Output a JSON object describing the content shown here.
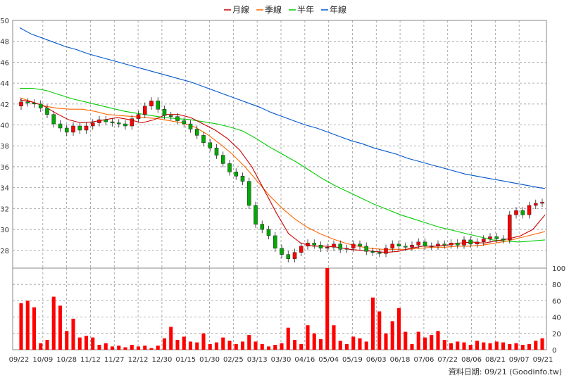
{
  "chart_data": {
    "type": "candlestick",
    "legend": [
      "月線",
      "季線",
      "半年",
      "年線"
    ],
    "colors": {
      "月線": "#cc0000",
      "季線": "#ff6600",
      "半年": "#00cc00",
      "年線": "#0055cc",
      "up": "#ff0000",
      "down": "#00aa00",
      "volume": "#ff0000",
      "grid": "#999999"
    },
    "price_axis": {
      "ticks": [
        28,
        30,
        32,
        34,
        36,
        38,
        40,
        42,
        44,
        46,
        48,
        50
      ],
      "range": [
        26.3,
        50
      ]
    },
    "volume_axis": {
      "ticks": [
        0,
        20,
        40,
        60,
        80,
        100
      ],
      "range": [
        0,
        100
      ]
    },
    "x_tick_labels": [
      "09/22",
      "10/09",
      "10/28",
      "11/12",
      "11/27",
      "12/12",
      "12/30",
      "01/15",
      "01/30",
      "02/25",
      "03/13",
      "03/30",
      "04/16",
      "05/04",
      "05/19",
      "06/03",
      "06/18",
      "07/06",
      "07/22",
      "08/06",
      "08/21",
      "09/07",
      "09/21"
    ],
    "series": [
      {
        "name": "年線",
        "values": [
          49.3,
          48.7,
          48.3,
          47.9,
          47.5,
          47.2,
          46.8,
          46.5,
          46.2,
          45.9,
          45.6,
          45.3,
          45.0,
          44.7,
          44.4,
          44.1,
          43.7,
          43.3,
          42.9,
          42.5,
          42.1,
          41.7,
          41.2,
          40.8,
          40.4,
          40.0,
          39.7,
          39.3,
          38.9,
          38.5,
          38.2,
          37.8,
          37.5,
          37.2,
          36.8,
          36.5,
          36.2,
          35.9,
          35.6,
          35.3,
          35.1,
          34.9,
          34.7,
          34.5,
          34.3,
          34.1,
          33.9
        ]
      },
      {
        "name": "半年",
        "values": [
          43.5,
          43.5,
          43.3,
          42.9,
          42.5,
          42.2,
          41.9,
          41.6,
          41.3,
          41.1,
          40.9,
          40.7,
          40.6,
          40.5,
          40.3,
          40.1,
          39.8,
          39.4,
          38.7,
          37.9,
          37.2,
          36.5,
          35.7,
          34.9,
          34.2,
          33.6,
          33.0,
          32.4,
          31.9,
          31.4,
          31.0,
          30.6,
          30.2,
          29.9,
          29.6,
          29.3,
          29.0,
          28.9,
          28.8,
          28.9,
          29.0
        ]
      },
      {
        "name": "季線",
        "values": [
          42.6,
          42.2,
          41.8,
          41.6,
          41.5,
          41.5,
          41.3,
          41.0,
          40.9,
          40.8,
          40.7,
          40.6,
          40.4,
          40.2,
          39.8,
          39.1,
          38.2,
          37.2,
          36.0,
          34.6,
          33.2,
          32.0,
          31.0,
          30.2,
          29.6,
          29.1,
          28.7,
          28.4,
          28.2,
          28.1,
          28.1,
          28.1,
          28.2,
          28.3,
          28.3,
          28.4,
          28.4,
          28.5,
          28.7,
          28.9,
          29.2,
          29.5,
          29.8
        ]
      },
      {
        "name": "月線",
        "values": [
          42.4,
          42.2,
          41.8,
          41.1,
          40.5,
          40.2,
          40.3,
          40.5,
          40.7,
          40.5,
          40.2,
          40.5,
          41.0,
          41.0,
          40.7,
          40.1,
          39.5,
          38.7,
          37.6,
          36.0,
          33.8,
          31.6,
          29.6,
          28.7,
          28.4,
          28.4,
          28.3,
          28.1,
          28.0,
          27.9,
          27.8,
          27.9,
          28.2,
          28.4,
          28.4,
          28.5,
          28.7,
          28.8,
          28.7,
          28.9,
          29.1,
          29.4,
          30.0,
          31.4
        ]
      }
    ],
    "ohlc_close": [
      42.2,
      42.1,
      42.0,
      41.6,
      41.0,
      40.1,
      39.7,
      39.3,
      39.9,
      39.5,
      39.9,
      40.2,
      40.5,
      40.3,
      40.2,
      40.1,
      39.9,
      40.6,
      41.0,
      41.8,
      42.3,
      41.5,
      40.9,
      40.8,
      40.4,
      40.1,
      39.6,
      39.0,
      38.3,
      37.8,
      37.1,
      36.3,
      35.5,
      35.1,
      34.6,
      32.3,
      30.5,
      30.0,
      29.4,
      28.2,
      27.6,
      27.2,
      27.8,
      28.4,
      28.7,
      28.5,
      28.2,
      28.3,
      28.6,
      28.1,
      28.2,
      28.6,
      28.4,
      27.9,
      27.8,
      27.7,
      28.2,
      28.6,
      28.4,
      28.3,
      28.5,
      28.8,
      28.4,
      28.4,
      28.6,
      28.5,
      28.7,
      28.5,
      29.0,
      28.6,
      28.8,
      29.1,
      29.3,
      29.1,
      29.0,
      31.4,
      31.8,
      31.4,
      32.3,
      32.5,
      32.6
    ],
    "volume": [
      57,
      60,
      52,
      8,
      12,
      65,
      54,
      23,
      38,
      15,
      17,
      15,
      6,
      8,
      4,
      5,
      3,
      6,
      4,
      5,
      2,
      5,
      14,
      28,
      12,
      16,
      10,
      9,
      20,
      7,
      9,
      15,
      11,
      7,
      10,
      18,
      10,
      7,
      4,
      6,
      8,
      27,
      12,
      7,
      30,
      20,
      13,
      100,
      30,
      11,
      7,
      16,
      14,
      10,
      64,
      47,
      20,
      35,
      51,
      22,
      7,
      22,
      15,
      18,
      23,
      12,
      8,
      10,
      9,
      6,
      11,
      9,
      8,
      10,
      9,
      7,
      8,
      6,
      7,
      11,
      14
    ],
    "footer": "資料日期: 09/21 (Goodinfo.tw)"
  }
}
